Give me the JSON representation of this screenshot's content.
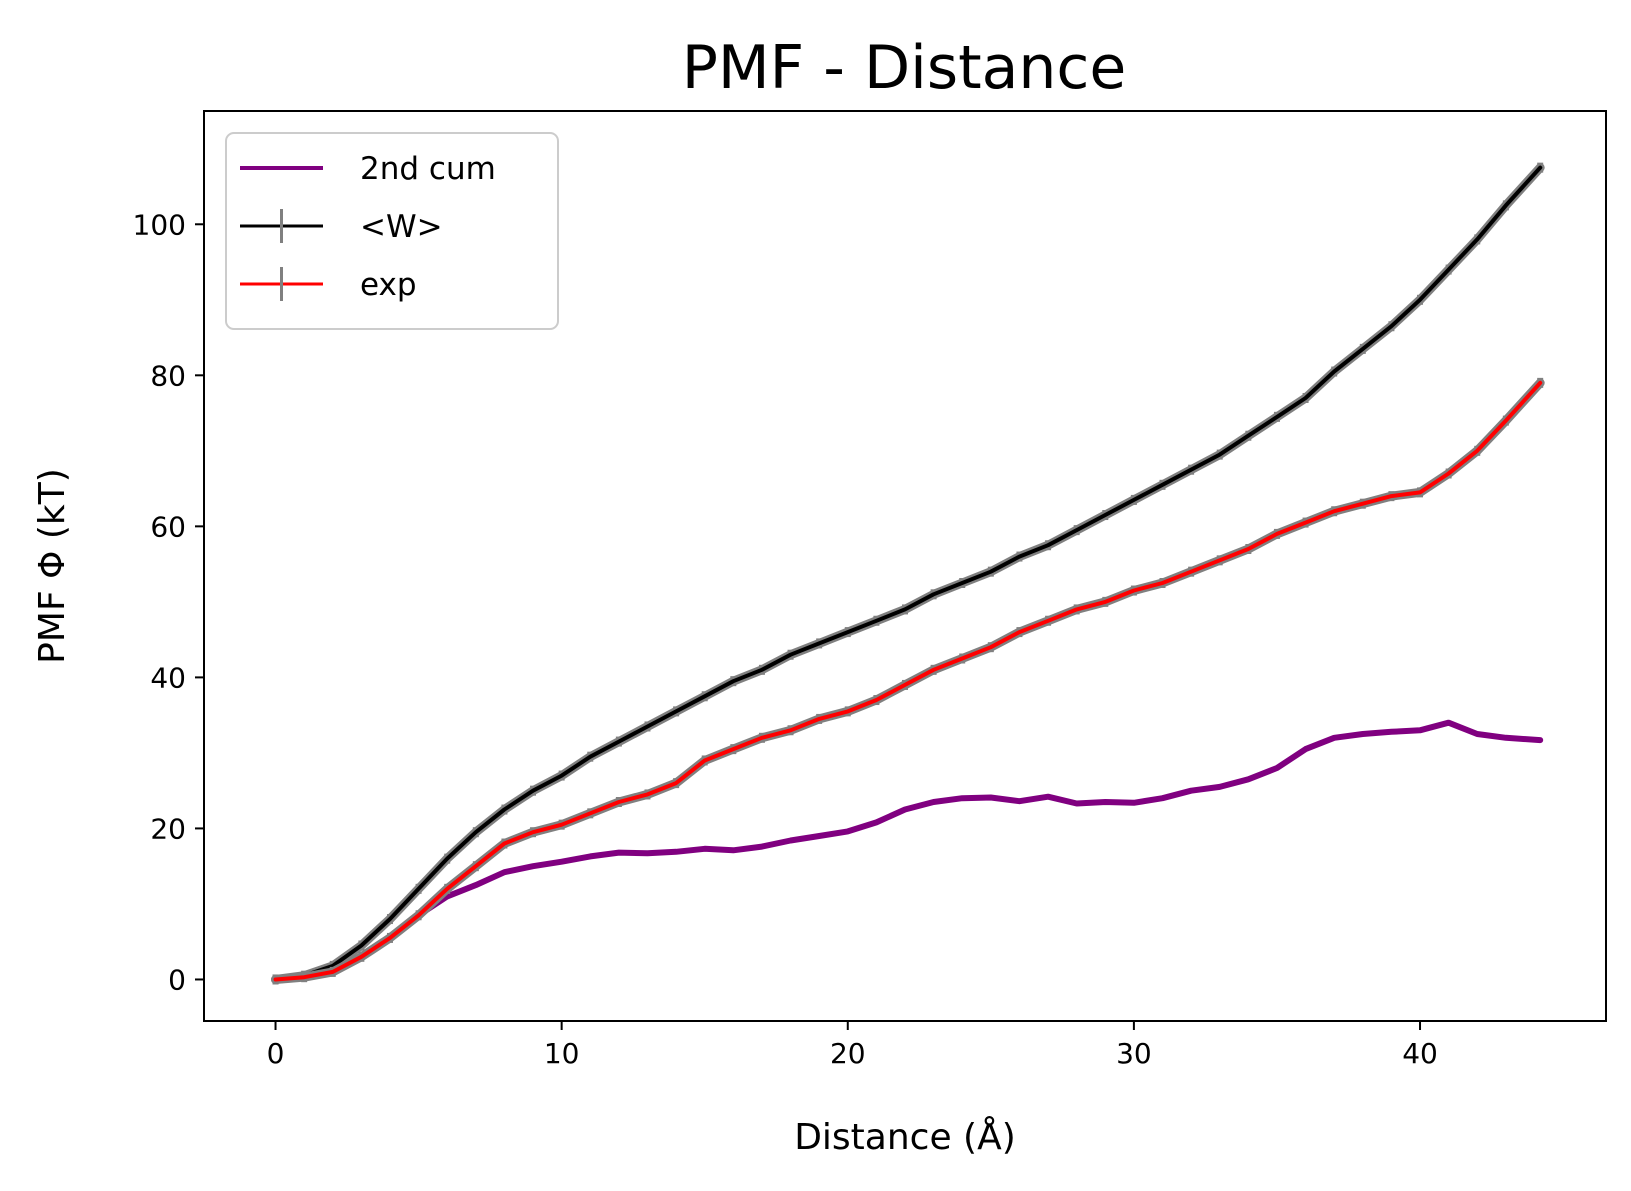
{
  "chart_data": {
    "type": "line",
    "title": "PMF - Distance",
    "xlabel": "Distance (Å)",
    "ylabel": "PMF Φ (kT)",
    "xlim": [
      -2.5,
      46.5
    ],
    "ylim": [
      -5.5,
      115
    ],
    "xticks": [
      0,
      10,
      20,
      30,
      40
    ],
    "xtick_labels": [
      "0",
      "10",
      "20",
      "30",
      "40"
    ],
    "yticks": [
      0,
      20,
      40,
      60,
      80,
      100
    ],
    "ytick_labels": [
      "0",
      "20",
      "40",
      "60",
      "80",
      "100"
    ],
    "grid": false,
    "legend_position": "top-left",
    "series": [
      {
        "name": "2nd cum",
        "color": "#800080",
        "errorbars": false,
        "x": [
          0,
          1,
          2,
          3,
          4,
          5,
          6,
          7,
          8,
          9,
          10,
          11,
          12,
          13,
          14,
          15,
          16,
          17,
          18,
          19,
          20,
          21,
          22,
          23,
          24,
          25,
          26,
          27,
          28,
          29,
          30,
          31,
          32,
          33,
          34,
          35,
          36,
          37,
          38,
          39,
          40,
          41,
          42,
          43,
          44.2
        ],
        "y": [
          0,
          0.4,
          1.2,
          3.0,
          5.5,
          8.5,
          11.0,
          12.5,
          14.2,
          15.0,
          15.6,
          16.3,
          16.8,
          16.7,
          16.9,
          17.3,
          17.1,
          17.6,
          18.4,
          19.0,
          19.6,
          20.8,
          22.5,
          23.5,
          24.0,
          24.1,
          23.6,
          24.2,
          23.3,
          23.5,
          23.4,
          24.0,
          25.0,
          25.5,
          26.5,
          28.0,
          30.5,
          32.0,
          32.5,
          32.8,
          33.0,
          34.0,
          32.5,
          32.0,
          31.7
        ]
      },
      {
        "name": "<W>",
        "color": "#000000",
        "errorbars": true,
        "x": [
          0,
          1,
          2,
          3,
          4,
          5,
          6,
          7,
          8,
          9,
          10,
          11,
          12,
          13,
          14,
          15,
          16,
          17,
          18,
          19,
          20,
          21,
          22,
          23,
          24,
          25,
          26,
          27,
          28,
          29,
          30,
          31,
          32,
          33,
          34,
          35,
          36,
          37,
          38,
          39,
          40,
          41,
          42,
          43,
          44.2
        ],
        "y": [
          0,
          0.5,
          1.8,
          4.5,
          8.0,
          12.0,
          16.0,
          19.5,
          22.5,
          25.0,
          27.0,
          29.5,
          31.5,
          33.5,
          35.5,
          37.5,
          39.5,
          41.0,
          43.0,
          44.5,
          46.0,
          47.5,
          49.0,
          51.0,
          52.5,
          54.0,
          56.0,
          57.5,
          59.5,
          61.5,
          63.5,
          65.5,
          67.5,
          69.5,
          72.0,
          74.5,
          77.0,
          80.5,
          83.5,
          86.5,
          90.0,
          94.0,
          98.0,
          102.5,
          107.5
        ]
      },
      {
        "name": "exp",
        "color": "#ff0000",
        "errorbars": true,
        "x": [
          0,
          1,
          2,
          3,
          4,
          5,
          6,
          7,
          8,
          9,
          10,
          11,
          12,
          13,
          14,
          15,
          16,
          17,
          18,
          19,
          20,
          21,
          22,
          23,
          24,
          25,
          26,
          27,
          28,
          29,
          30,
          31,
          32,
          33,
          34,
          35,
          36,
          37,
          38,
          39,
          40,
          41,
          42,
          43,
          44.2
        ],
        "y": [
          0,
          0.3,
          1.0,
          3.0,
          5.5,
          8.5,
          12.0,
          15.0,
          18.0,
          19.5,
          20.5,
          22.0,
          23.5,
          24.5,
          26.0,
          29.0,
          30.5,
          32.0,
          33.0,
          34.5,
          35.5,
          37.0,
          39.0,
          41.0,
          42.5,
          44.0,
          46.0,
          47.5,
          49.0,
          50.0,
          51.5,
          52.5,
          54.0,
          55.5,
          57.0,
          59.0,
          60.5,
          62.0,
          63.0,
          64.0,
          64.5,
          67.0,
          70.0,
          74.0,
          79.0
        ]
      }
    ]
  }
}
